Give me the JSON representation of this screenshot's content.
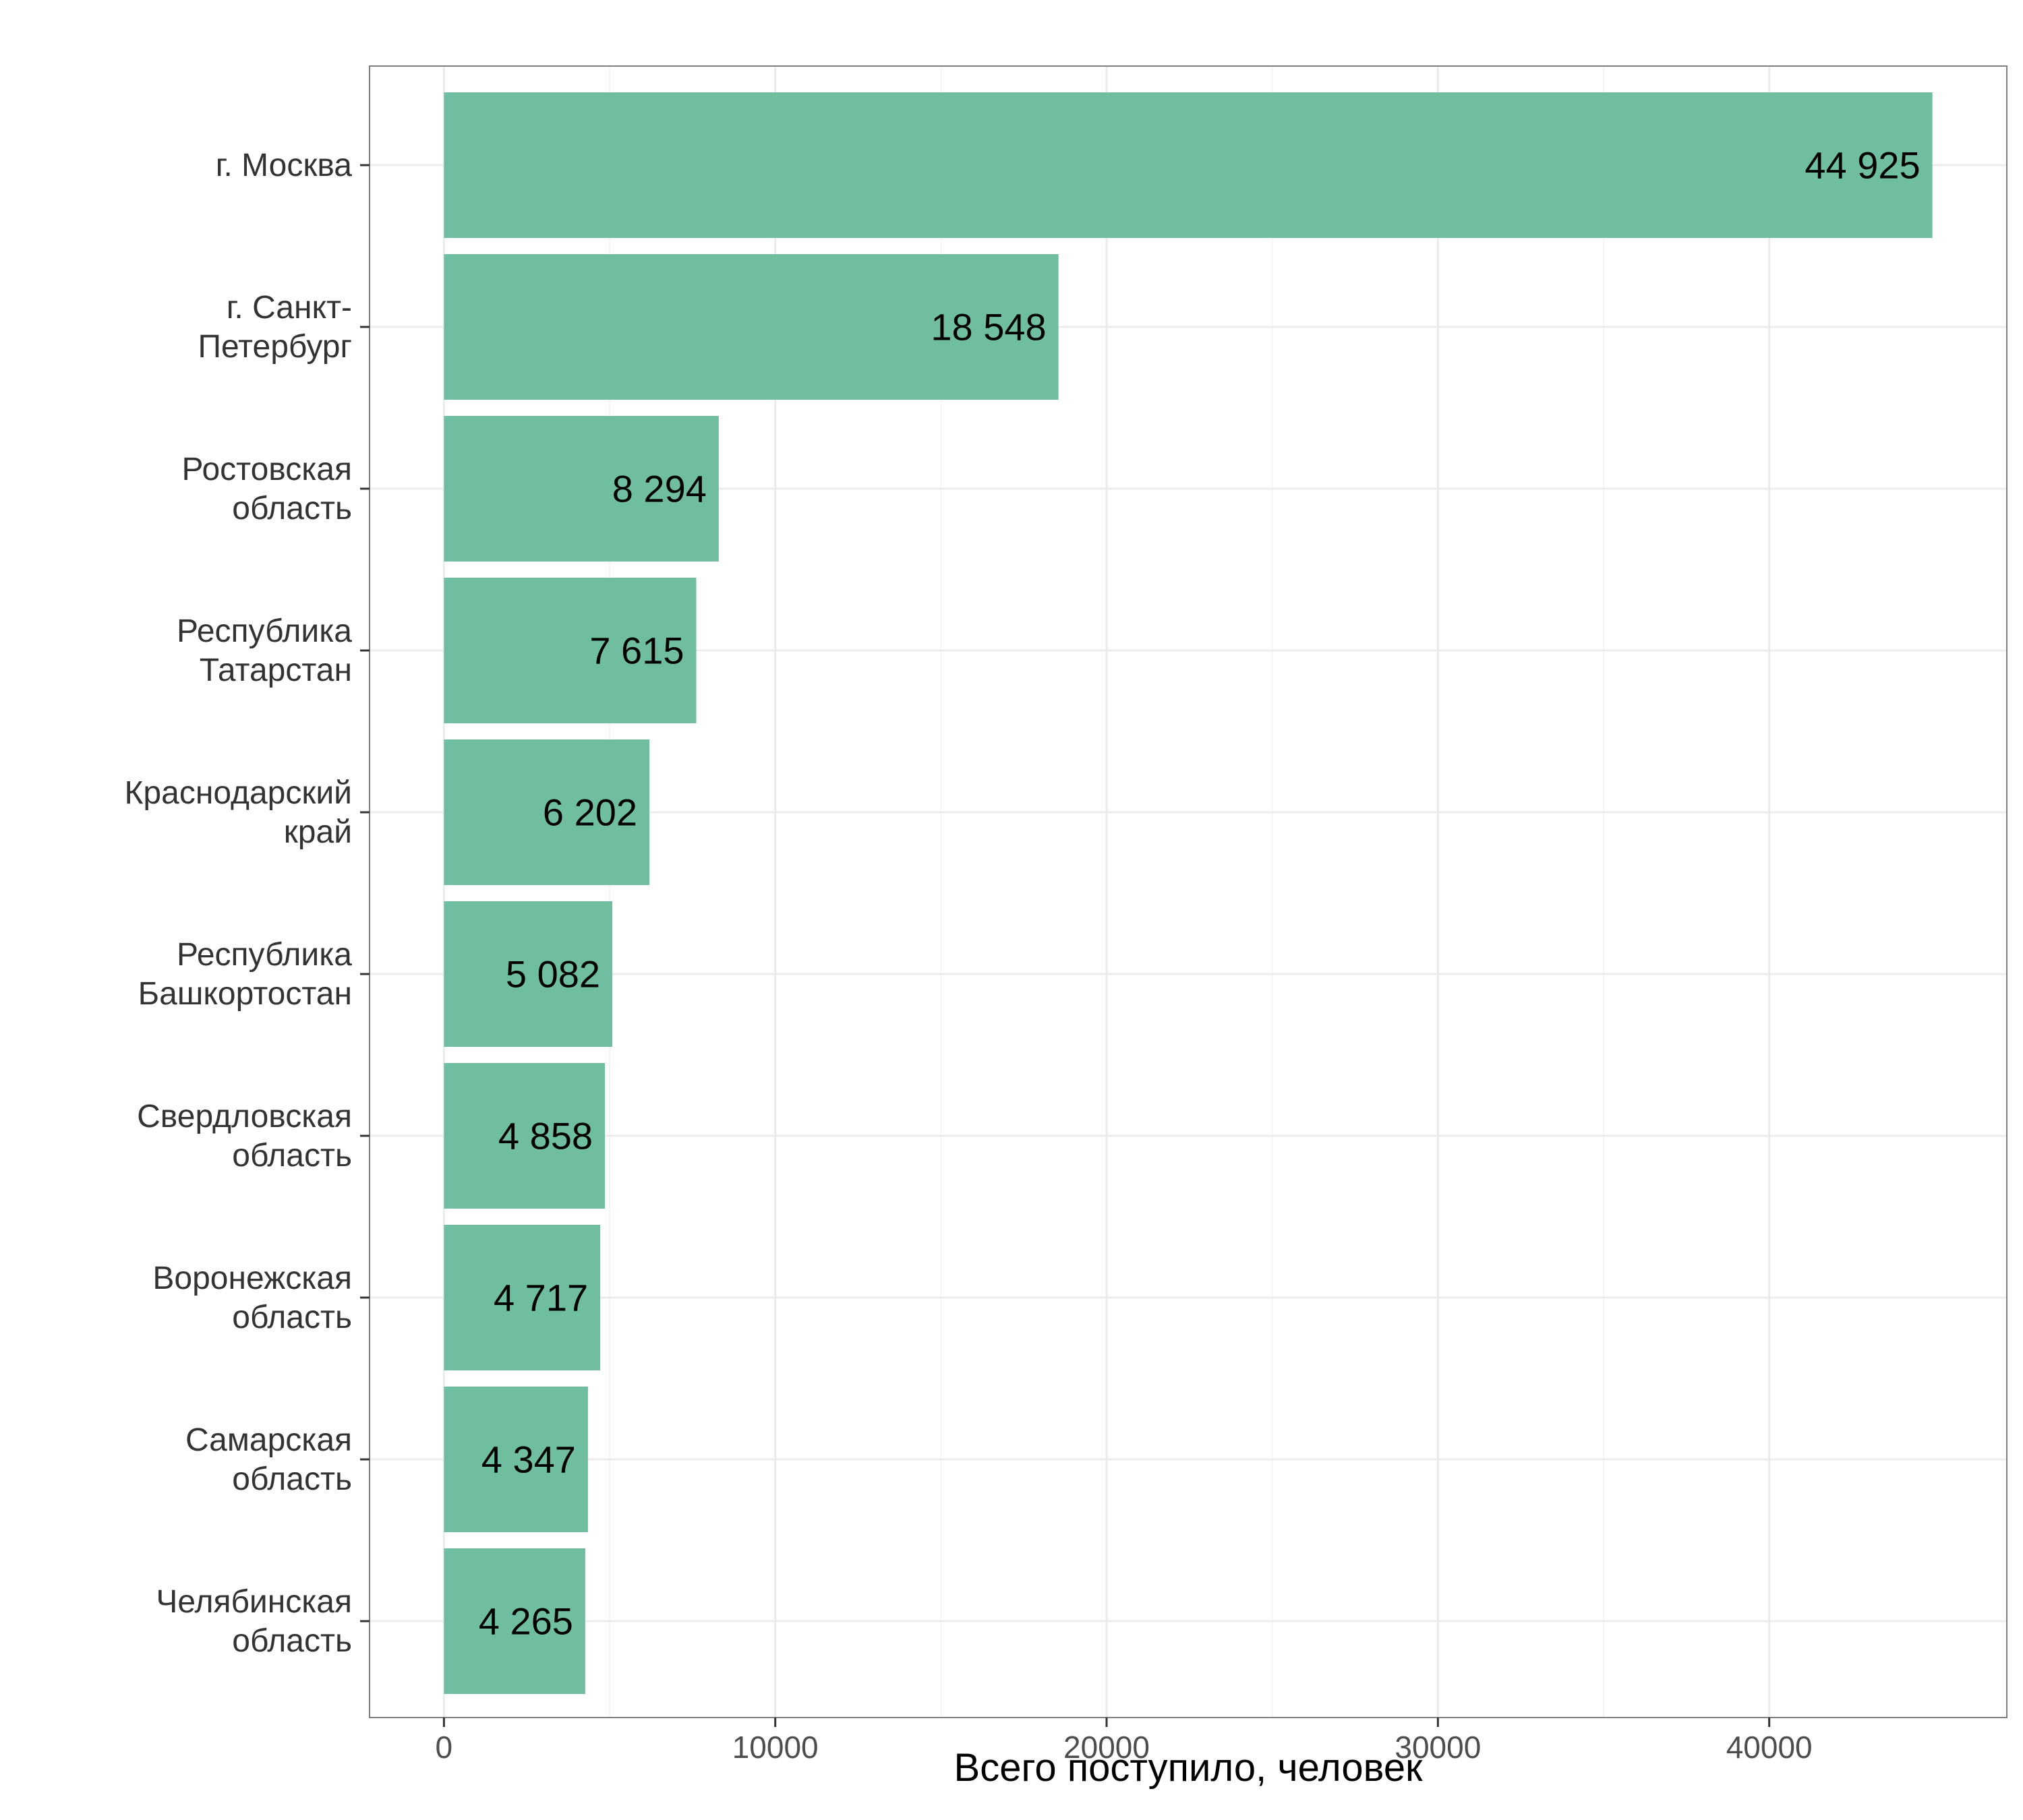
{
  "chart_data": {
    "type": "bar",
    "orientation": "horizontal",
    "title": "",
    "xlabel": "Всего поступило, человек",
    "ylabel": "",
    "categories": [
      [
        "г. Москва"
      ],
      [
        "г. Санкт-",
        "Петербург"
      ],
      [
        "Ростовская",
        "область"
      ],
      [
        "Республика",
        "Татарстан"
      ],
      [
        "Краснодарский",
        "край"
      ],
      [
        "Республика",
        "Башкортостан"
      ],
      [
        "Свердловская",
        "область"
      ],
      [
        "Воронежская",
        "область"
      ],
      [
        "Самарская",
        "область"
      ],
      [
        "Челябинская",
        "область"
      ]
    ],
    "values": [
      44925,
      18548,
      8294,
      7615,
      6202,
      5082,
      4858,
      4717,
      4347,
      4265
    ],
    "value_labels": [
      "44 925",
      "18 548",
      "8 294",
      "7 615",
      "6 202",
      "5 082",
      "4 858",
      "4 717",
      "4 347",
      "4 265"
    ],
    "x_ticks": [
      0,
      10000,
      20000,
      30000,
      40000
    ],
    "x_tick_labels": [
      "0",
      "10000",
      "20000",
      "30000",
      "40000"
    ],
    "xlim": [
      -2246,
      47171
    ],
    "grid": true,
    "legend": "none",
    "colors": {
      "bar": "#6fbe9f",
      "panel_border": "#7f7f7f",
      "grid_major": "#ebebeb",
      "grid_minor": "#f4f4f4",
      "axis_tick": "#333333"
    }
  }
}
